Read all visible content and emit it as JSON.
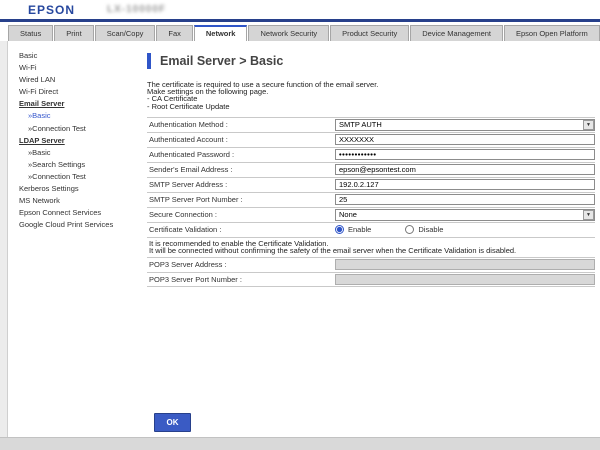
{
  "header": {
    "brand": "EPSON",
    "model": "LX-10000F"
  },
  "tabs": [
    {
      "label": "Status"
    },
    {
      "label": "Print"
    },
    {
      "label": "Scan/Copy"
    },
    {
      "label": "Fax"
    },
    {
      "label": "Network",
      "active": true
    },
    {
      "label": "Network Security"
    },
    {
      "label": "Product Security"
    },
    {
      "label": "Device Management"
    },
    {
      "label": "Epson Open Platform"
    }
  ],
  "sidebar": {
    "items": [
      {
        "label": "Basic",
        "type": "item"
      },
      {
        "label": "Wi-Fi",
        "type": "item"
      },
      {
        "label": "Wired LAN",
        "type": "item"
      },
      {
        "label": "Wi-Fi Direct",
        "type": "item"
      },
      {
        "label": "Email Server",
        "type": "section"
      },
      {
        "label": "»Basic",
        "type": "sub",
        "active": true
      },
      {
        "label": "»Connection Test",
        "type": "sub"
      },
      {
        "label": "LDAP Server",
        "type": "section"
      },
      {
        "label": "»Basic",
        "type": "sub"
      },
      {
        "label": "»Search Settings",
        "type": "sub"
      },
      {
        "label": "»Connection Test",
        "type": "sub"
      },
      {
        "label": "Kerberos Settings",
        "type": "item"
      },
      {
        "label": "MS Network",
        "type": "item"
      },
      {
        "label": "Epson Connect Services",
        "type": "item"
      },
      {
        "label": "Google Cloud Print Services",
        "type": "item"
      }
    ]
  },
  "main": {
    "title": "Email Server > Basic",
    "intro_lines": [
      "The certificate is required to use a secure function of the email server.",
      "Make settings on the following page.",
      "- CA Certificate",
      "- Root Certificate Update"
    ],
    "form": {
      "rows": [
        {
          "label": "Authentication Method :",
          "control": "select",
          "value": "SMTP AUTH"
        },
        {
          "label": "Authenticated Account :",
          "control": "text",
          "value": "XXXXXXX"
        },
        {
          "label": "Authenticated Password :",
          "control": "password",
          "value": "••••••••••••"
        },
        {
          "label": "Sender's Email Address :",
          "control": "text",
          "value": "epson@epsontest.com"
        },
        {
          "label": "SMTP Server Address :",
          "control": "text",
          "value": "192.0.2.127"
        },
        {
          "label": "SMTP Server Port Number :",
          "control": "text",
          "value": "25"
        },
        {
          "label": "Secure Connection :",
          "control": "select",
          "value": "None"
        },
        {
          "label": "Certificate Validation :",
          "control": "radio",
          "options": [
            {
              "label": "Enable",
              "selected": true
            },
            {
              "label": "Disable",
              "selected": false
            }
          ]
        },
        {
          "label": "POP3 Server Address :",
          "control": "text",
          "value": "",
          "disabled": true
        },
        {
          "label": "POP3 Server Port Number :",
          "control": "text",
          "value": "",
          "disabled": true
        }
      ]
    },
    "note_lines": [
      "It is recommended to enable the Certificate Validation.",
      "It will be connected without confirming the safety of the email server when the Certificate Validation is disabled."
    ],
    "ok_label": "OK"
  },
  "icons": {
    "dropdown_arrow": "▼"
  },
  "colors": {
    "accent_blue": "#2f55c8",
    "navy": "#27408b",
    "tab_gray": "#d5d5d5",
    "footer_gray": "#d9d9d9"
  }
}
